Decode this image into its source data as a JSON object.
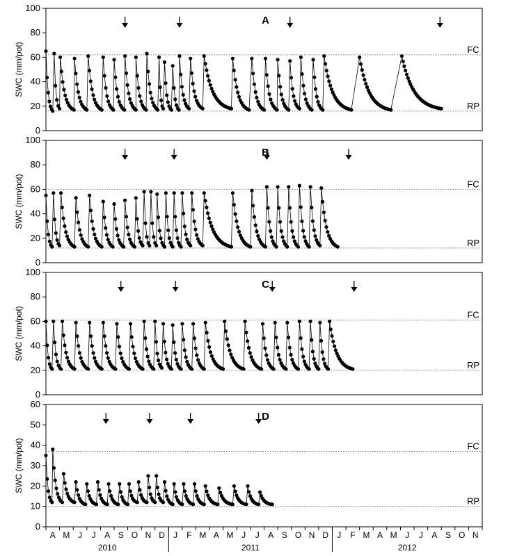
{
  "figure": {
    "years": [
      "2010",
      "2011",
      "2012"
    ],
    "months": [
      "A",
      "M",
      "J",
      "J",
      "A",
      "S",
      "O",
      "N",
      "D",
      "J",
      "F",
      "M",
      "A",
      "M",
      "J",
      "J",
      "A",
      "S",
      "O",
      "N",
      "D",
      "J",
      "F",
      "M",
      "A",
      "M",
      "J",
      "J",
      "A",
      "S",
      "O",
      "N"
    ],
    "colors": {
      "marker": "#000000",
      "line": "#000000",
      "reference": "#777777",
      "frame": "#000000"
    },
    "arrow_glyph": "down-arrow"
  },
  "chart_data": [
    {
      "type": "scatter",
      "panel_label": "A",
      "ylabel": "SWC (mm/pot)",
      "ylim": [
        0,
        100
      ],
      "yticks": [
        0,
        20,
        40,
        60,
        80,
        100
      ],
      "reference_lines": [
        {
          "label": "FC",
          "value": 62
        },
        {
          "label": "RP",
          "value": 16
        }
      ],
      "arrows_month_pos": [
        5.8,
        9.8,
        17.9,
        28.9
      ],
      "cycles": [
        {
          "start": 0.0,
          "end": 0.5,
          "top": 65,
          "bottom": 16
        },
        {
          "start": 0.6,
          "end": 1.0,
          "top": 63,
          "bottom": 18
        },
        {
          "start": 1.05,
          "end": 2.05,
          "top": 60,
          "bottom": 17
        },
        {
          "start": 2.1,
          "end": 3.0,
          "top": 59,
          "bottom": 17
        },
        {
          "start": 3.1,
          "end": 4.1,
          "top": 61,
          "bottom": 17
        },
        {
          "start": 4.2,
          "end": 4.95,
          "top": 60,
          "bottom": 17
        },
        {
          "start": 5.0,
          "end": 5.75,
          "top": 58,
          "bottom": 17
        },
        {
          "start": 5.8,
          "end": 6.6,
          "top": 61,
          "bottom": 17
        },
        {
          "start": 6.6,
          "end": 7.35,
          "top": 60,
          "bottom": 17
        },
        {
          "start": 7.4,
          "end": 8.2,
          "top": 63,
          "bottom": 17
        },
        {
          "start": 8.3,
          "end": 8.6,
          "top": 60,
          "bottom": 18
        },
        {
          "start": 8.7,
          "end": 9.2,
          "top": 56,
          "bottom": 17
        },
        {
          "start": 9.3,
          "end": 9.75,
          "top": 53,
          "bottom": 17
        },
        {
          "start": 9.8,
          "end": 10.5,
          "top": 61,
          "bottom": 18
        },
        {
          "start": 10.6,
          "end": 11.5,
          "top": 59,
          "bottom": 18
        },
        {
          "start": 11.6,
          "end": 13.6,
          "top": 61,
          "bottom": 18
        },
        {
          "start": 13.7,
          "end": 14.9,
          "top": 59,
          "bottom": 17
        },
        {
          "start": 15.1,
          "end": 16.0,
          "top": 59,
          "bottom": 17
        },
        {
          "start": 16.1,
          "end": 16.95,
          "top": 59,
          "bottom": 17
        },
        {
          "start": 17.0,
          "end": 17.8,
          "top": 58,
          "bottom": 17
        },
        {
          "start": 17.9,
          "end": 18.6,
          "top": 57,
          "bottom": 18
        },
        {
          "start": 18.7,
          "end": 19.5,
          "top": 60,
          "bottom": 17
        },
        {
          "start": 19.6,
          "end": 20.3,
          "top": 58,
          "bottom": 17
        },
        {
          "start": 20.4,
          "end": 22.4,
          "top": 61,
          "bottom": 17
        },
        {
          "start": 23.0,
          "end": 25.3,
          "top": 60,
          "bottom": 17
        },
        {
          "start": 26.1,
          "end": 29.0,
          "top": 61,
          "bottom": 18
        }
      ]
    },
    {
      "type": "scatter",
      "panel_label": "B",
      "ylabel": "SWC (mm/pot)",
      "ylim": [
        0,
        100
      ],
      "yticks": [
        0,
        20,
        40,
        60,
        80,
        100
      ],
      "reference_lines": [
        {
          "label": "FC",
          "value": 60
        },
        {
          "label": "RP",
          "value": 12
        }
      ],
      "arrows_month_pos": [
        5.8,
        9.4,
        16.2,
        22.2
      ],
      "cycles": [
        {
          "start": 0.0,
          "end": 0.45,
          "top": 55,
          "bottom": 13
        },
        {
          "start": 0.55,
          "end": 1.0,
          "top": 57,
          "bottom": 14
        },
        {
          "start": 1.1,
          "end": 2.1,
          "top": 57,
          "bottom": 13
        },
        {
          "start": 2.2,
          "end": 3.1,
          "top": 53,
          "bottom": 13
        },
        {
          "start": 3.2,
          "end": 4.1,
          "top": 55,
          "bottom": 13
        },
        {
          "start": 4.2,
          "end": 4.9,
          "top": 50,
          "bottom": 13
        },
        {
          "start": 5.0,
          "end": 5.7,
          "top": 48,
          "bottom": 13
        },
        {
          "start": 5.8,
          "end": 6.5,
          "top": 51,
          "bottom": 13
        },
        {
          "start": 6.6,
          "end": 7.1,
          "top": 53,
          "bottom": 14
        },
        {
          "start": 7.2,
          "end": 7.6,
          "top": 58,
          "bottom": 14
        },
        {
          "start": 7.7,
          "end": 8.1,
          "top": 58,
          "bottom": 14
        },
        {
          "start": 8.15,
          "end": 8.7,
          "top": 56,
          "bottom": 13
        },
        {
          "start": 8.8,
          "end": 9.3,
          "top": 57,
          "bottom": 13
        },
        {
          "start": 9.4,
          "end": 9.9,
          "top": 57,
          "bottom": 13
        },
        {
          "start": 10.0,
          "end": 10.6,
          "top": 57,
          "bottom": 14
        },
        {
          "start": 10.7,
          "end": 11.5,
          "top": 57,
          "bottom": 14
        },
        {
          "start": 11.6,
          "end": 13.6,
          "top": 57,
          "bottom": 13
        },
        {
          "start": 13.7,
          "end": 15.0,
          "top": 57,
          "bottom": 13
        },
        {
          "start": 15.1,
          "end": 16.1,
          "top": 59,
          "bottom": 13
        },
        {
          "start": 16.2,
          "end": 16.9,
          "top": 62,
          "bottom": 13
        },
        {
          "start": 17.0,
          "end": 17.7,
          "top": 62,
          "bottom": 13
        },
        {
          "start": 17.8,
          "end": 18.5,
          "top": 62,
          "bottom": 13
        },
        {
          "start": 18.6,
          "end": 19.3,
          "top": 63,
          "bottom": 13
        },
        {
          "start": 19.4,
          "end": 20.1,
          "top": 62,
          "bottom": 14
        },
        {
          "start": 20.2,
          "end": 21.4,
          "top": 61,
          "bottom": 13
        }
      ]
    },
    {
      "type": "scatter",
      "panel_label": "C",
      "ylabel": "SWC (mm/pot)",
      "ylim": [
        0,
        100
      ],
      "yticks": [
        0,
        20,
        40,
        60,
        80,
        100
      ],
      "reference_lines": [
        {
          "label": "FC",
          "value": 61
        },
        {
          "label": "RP",
          "value": 20
        }
      ],
      "arrows_month_pos": [
        5.5,
        9.5,
        16.6,
        22.6
      ],
      "cycles": [
        {
          "start": 0.0,
          "end": 0.45,
          "top": 60,
          "bottom": 21
        },
        {
          "start": 0.55,
          "end": 1.1,
          "top": 60,
          "bottom": 21
        },
        {
          "start": 1.2,
          "end": 2.1,
          "top": 60,
          "bottom": 21
        },
        {
          "start": 2.2,
          "end": 3.1,
          "top": 59,
          "bottom": 21
        },
        {
          "start": 3.2,
          "end": 4.1,
          "top": 59,
          "bottom": 21
        },
        {
          "start": 4.2,
          "end": 5.1,
          "top": 59,
          "bottom": 21
        },
        {
          "start": 5.2,
          "end": 6.1,
          "top": 58,
          "bottom": 21
        },
        {
          "start": 6.2,
          "end": 7.1,
          "top": 58,
          "bottom": 21
        },
        {
          "start": 7.2,
          "end": 7.9,
          "top": 60,
          "bottom": 21
        },
        {
          "start": 8.0,
          "end": 8.5,
          "top": 60,
          "bottom": 22
        },
        {
          "start": 8.6,
          "end": 9.2,
          "top": 58,
          "bottom": 21
        },
        {
          "start": 9.3,
          "end": 9.9,
          "top": 57,
          "bottom": 21
        },
        {
          "start": 10.0,
          "end": 10.7,
          "top": 58,
          "bottom": 21
        },
        {
          "start": 10.8,
          "end": 11.6,
          "top": 58,
          "bottom": 21
        },
        {
          "start": 11.7,
          "end": 13.0,
          "top": 59,
          "bottom": 21
        },
        {
          "start": 13.1,
          "end": 14.5,
          "top": 60,
          "bottom": 21
        },
        {
          "start": 14.6,
          "end": 15.8,
          "top": 60,
          "bottom": 21
        },
        {
          "start": 15.9,
          "end": 16.7,
          "top": 58,
          "bottom": 21
        },
        {
          "start": 16.8,
          "end": 17.6,
          "top": 59,
          "bottom": 21
        },
        {
          "start": 17.7,
          "end": 18.5,
          "top": 59,
          "bottom": 21
        },
        {
          "start": 18.6,
          "end": 19.3,
          "top": 60,
          "bottom": 21
        },
        {
          "start": 19.4,
          "end": 20.0,
          "top": 60,
          "bottom": 21
        },
        {
          "start": 20.1,
          "end": 20.7,
          "top": 59,
          "bottom": 21
        },
        {
          "start": 20.8,
          "end": 22.5,
          "top": 60,
          "bottom": 21
        }
      ]
    },
    {
      "type": "scatter",
      "panel_label": "D",
      "ylabel": "SWC (mm/pot)",
      "ylim": [
        0,
        60
      ],
      "yticks": [
        0,
        10,
        20,
        30,
        40,
        50,
        60
      ],
      "reference_lines": [
        {
          "label": "FC",
          "value": 37
        },
        {
          "label": "RP",
          "value": 10
        }
      ],
      "arrows_month_pos": [
        4.4,
        7.6,
        10.6,
        15.6
      ],
      "cycles": [
        {
          "start": 0.0,
          "end": 0.45,
          "top": 35,
          "bottom": 12
        },
        {
          "start": 0.5,
          "end": 1.2,
          "top": 38,
          "bottom": 12
        },
        {
          "start": 1.3,
          "end": 2.1,
          "top": 26,
          "bottom": 12
        },
        {
          "start": 2.2,
          "end": 2.9,
          "top": 22,
          "bottom": 11
        },
        {
          "start": 3.0,
          "end": 3.7,
          "top": 21,
          "bottom": 11
        },
        {
          "start": 3.8,
          "end": 4.5,
          "top": 22,
          "bottom": 11
        },
        {
          "start": 4.6,
          "end": 5.3,
          "top": 21,
          "bottom": 11
        },
        {
          "start": 5.4,
          "end": 6.0,
          "top": 21,
          "bottom": 11
        },
        {
          "start": 6.1,
          "end": 6.7,
          "top": 21,
          "bottom": 12
        },
        {
          "start": 6.8,
          "end": 7.4,
          "top": 22,
          "bottom": 12
        },
        {
          "start": 7.5,
          "end": 8.0,
          "top": 25,
          "bottom": 12
        },
        {
          "start": 8.1,
          "end": 8.6,
          "top": 25,
          "bottom": 12
        },
        {
          "start": 8.7,
          "end": 9.3,
          "top": 22,
          "bottom": 11
        },
        {
          "start": 9.4,
          "end": 10.0,
          "top": 21,
          "bottom": 11
        },
        {
          "start": 10.1,
          "end": 10.8,
          "top": 21,
          "bottom": 11
        },
        {
          "start": 10.9,
          "end": 11.6,
          "top": 21,
          "bottom": 11
        },
        {
          "start": 11.7,
          "end": 12.6,
          "top": 20,
          "bottom": 11
        },
        {
          "start": 12.7,
          "end": 13.7,
          "top": 19,
          "bottom": 11
        },
        {
          "start": 13.8,
          "end": 14.7,
          "top": 20,
          "bottom": 11
        },
        {
          "start": 14.8,
          "end": 15.6,
          "top": 20,
          "bottom": 11
        },
        {
          "start": 15.7,
          "end": 16.6,
          "top": 17,
          "bottom": 11
        }
      ]
    }
  ]
}
